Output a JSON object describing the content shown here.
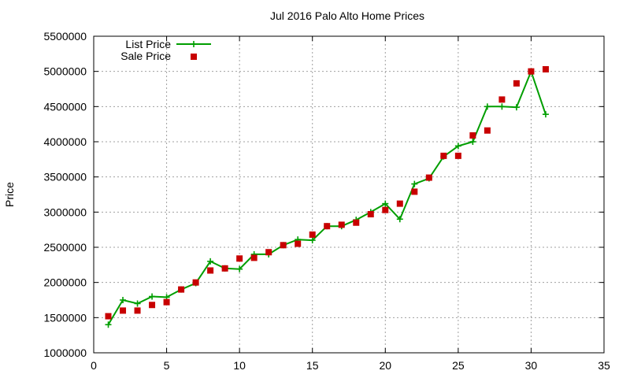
{
  "chart_data": {
    "type": "line",
    "title": "Jul 2016 Palo Alto Home Prices",
    "xlabel": "",
    "ylabel": "Price",
    "xlim": [
      0,
      35
    ],
    "ylim": [
      1000000,
      5500000
    ],
    "x_ticks": [
      "0",
      "5",
      "10",
      "15",
      "20",
      "25",
      "30",
      "35"
    ],
    "y_ticks": [
      "1000000",
      "1500000",
      "2000000",
      "2500000",
      "3000000",
      "3500000",
      "4000000",
      "4500000",
      "5000000",
      "5500000"
    ],
    "x_tick_values": [
      0,
      5,
      10,
      15,
      20,
      25,
      30,
      35
    ],
    "y_tick_values": [
      1000000,
      1500000,
      2000000,
      2500000,
      3000000,
      3500000,
      4000000,
      4500000,
      5000000,
      5500000
    ],
    "grid": true,
    "legend_position": "top-left",
    "series": [
      {
        "name": "List Price",
        "style": "linespoints",
        "color": "#009e00",
        "x": [
          1,
          2,
          3,
          4,
          5,
          6,
          7,
          8,
          9,
          10,
          11,
          12,
          13,
          14,
          15,
          16,
          17,
          18,
          19,
          20,
          21,
          22,
          23,
          24,
          25,
          26,
          27,
          28,
          29,
          30,
          31
        ],
        "values": [
          1400000,
          1750000,
          1700000,
          1800000,
          1790000,
          1900000,
          1990000,
          2300000,
          2200000,
          2190000,
          2400000,
          2400000,
          2530000,
          2610000,
          2600000,
          2800000,
          2800000,
          2890000,
          3000000,
          3120000,
          2900000,
          3400000,
          3480000,
          3790000,
          3940000,
          4000000,
          4500000,
          4500000,
          4490000,
          5000000,
          4390000
        ]
      },
      {
        "name": "Sale Price",
        "style": "points",
        "color": "#c80000",
        "x": [
          1,
          2,
          3,
          4,
          5,
          6,
          7,
          8,
          9,
          10,
          11,
          12,
          13,
          14,
          15,
          16,
          17,
          18,
          19,
          20,
          21,
          22,
          23,
          24,
          25,
          26,
          27,
          28,
          29,
          30,
          31
        ],
        "values": [
          1520000,
          1600000,
          1600000,
          1680000,
          1720000,
          1900000,
          2000000,
          2170000,
          2200000,
          2340000,
          2350000,
          2430000,
          2530000,
          2550000,
          2680000,
          2800000,
          2820000,
          2850000,
          2970000,
          3030000,
          3120000,
          3290000,
          3490000,
          3800000,
          3800000,
          4090000,
          4160000,
          4600000,
          4830000,
          5000000,
          5030000
        ]
      }
    ]
  }
}
